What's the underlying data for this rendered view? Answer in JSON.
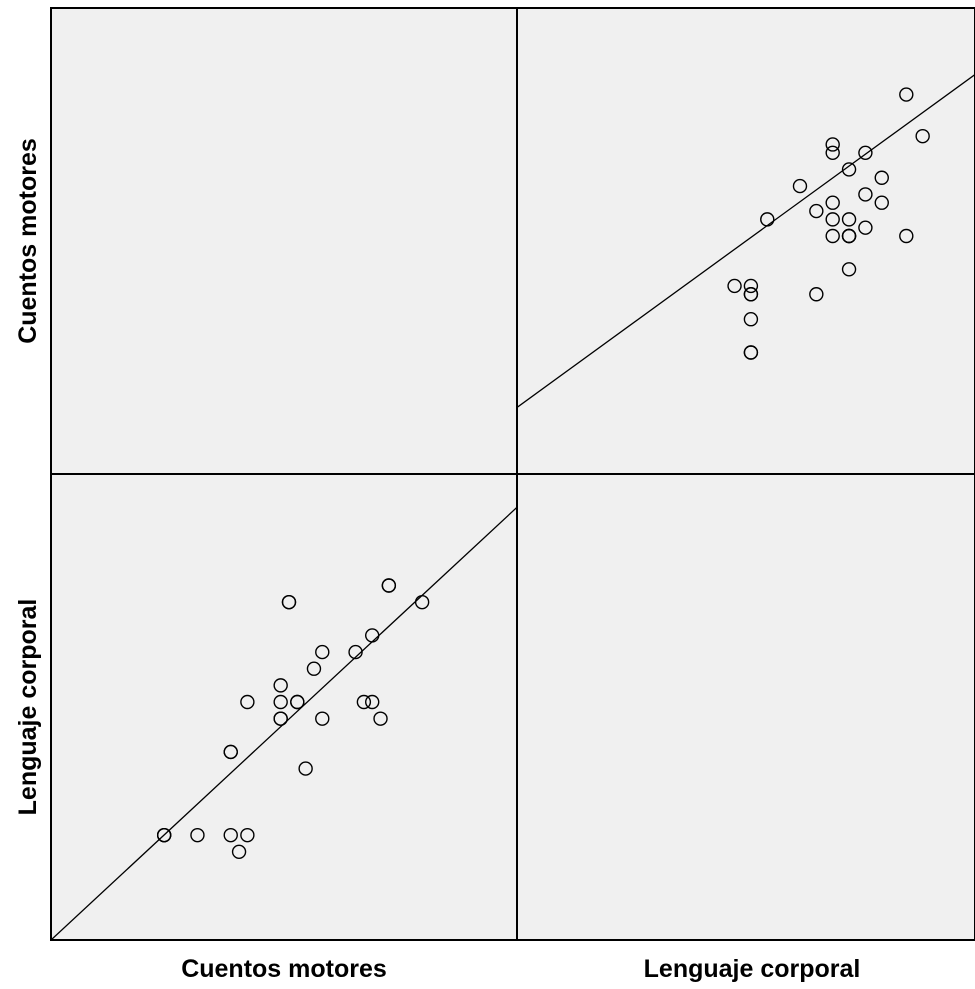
{
  "chart_data": {
    "type": "scatter",
    "chart_kind": "scatterplot matrix",
    "variables": [
      "Cuentos motores",
      "Lenguaje corporal"
    ],
    "grid": false,
    "background_color": "#f0f0f0",
    "marker_color": "#000000",
    "marker": "open circle",
    "fit_line": true,
    "panels": [
      {
        "position": "top-right",
        "x_variable": "Lenguaje corporal",
        "y_variable": "Cuentos motores",
        "x_range": [
          0,
          28
        ],
        "y_range": [
          0,
          28
        ],
        "points": [
          [
            23.8,
            22.8
          ],
          [
            19.3,
            19.8
          ],
          [
            19.3,
            19.3
          ],
          [
            21.3,
            19.3
          ],
          [
            24.8,
            20.3
          ],
          [
            20.3,
            18.3
          ],
          [
            22.3,
            17.8
          ],
          [
            22.3,
            16.3
          ],
          [
            17.3,
            17.3
          ],
          [
            19.3,
            16.3
          ],
          [
            20.3,
            15.3
          ],
          [
            19.3,
            14.3
          ],
          [
            20.3,
            14.3
          ],
          [
            21.3,
            16.8
          ],
          [
            23.8,
            14.3
          ],
          [
            15.3,
            15.3
          ],
          [
            18.3,
            15.8
          ],
          [
            19.3,
            15.3
          ],
          [
            20.3,
            14.3
          ],
          [
            20.3,
            14.3
          ],
          [
            13.3,
            11.3
          ],
          [
            14.3,
            11.3
          ],
          [
            14.3,
            10.8
          ],
          [
            14.3,
            10.8
          ],
          [
            18.3,
            10.8
          ],
          [
            20.3,
            12.3
          ],
          [
            14.3,
            9.3
          ],
          [
            14.3,
            7.3
          ],
          [
            14.3,
            7.3
          ],
          [
            21.3,
            14.8
          ]
        ],
        "fit_line_endpoints": [
          [
            0,
            4.0
          ],
          [
            28,
            24.0
          ]
        ]
      },
      {
        "position": "bottom-left",
        "x_variable": "Cuentos motores",
        "y_variable": "Lenguaje corporal",
        "x_range": [
          0,
          28
        ],
        "y_range": [
          0,
          28
        ],
        "points": [
          [
            20.3,
            21.3
          ],
          [
            22.3,
            20.3
          ],
          [
            14.3,
            20.3
          ],
          [
            14.3,
            20.3
          ],
          [
            19.3,
            18.3
          ],
          [
            18.3,
            17.3
          ],
          [
            16.3,
            17.3
          ],
          [
            15.8,
            16.3
          ],
          [
            13.8,
            15.3
          ],
          [
            13.8,
            14.3
          ],
          [
            11.8,
            14.3
          ],
          [
            14.8,
            14.3
          ],
          [
            18.8,
            14.3
          ],
          [
            19.3,
            14.3
          ],
          [
            16.3,
            13.3
          ],
          [
            13.8,
            13.3
          ],
          [
            19.8,
            13.3
          ],
          [
            14.8,
            14.3
          ],
          [
            10.8,
            11.3
          ],
          [
            15.3,
            10.3
          ],
          [
            6.8,
            6.3
          ],
          [
            8.8,
            6.3
          ],
          [
            10.8,
            6.3
          ],
          [
            11.8,
            6.3
          ],
          [
            11.3,
            5.3
          ],
          [
            13.8,
            13.3
          ],
          [
            10.8,
            11.3
          ],
          [
            6.8,
            6.3
          ],
          [
            6.8,
            6.3
          ],
          [
            20.3,
            21.3
          ]
        ],
        "fit_line_endpoints": [
          [
            0,
            0
          ],
          [
            28,
            26.0
          ]
        ]
      }
    ],
    "x_axis_labels": [
      "Cuentos motores",
      "Lenguaje corporal"
    ],
    "y_axis_labels": [
      "Cuentos motores",
      "Lenguaje corporal"
    ]
  }
}
